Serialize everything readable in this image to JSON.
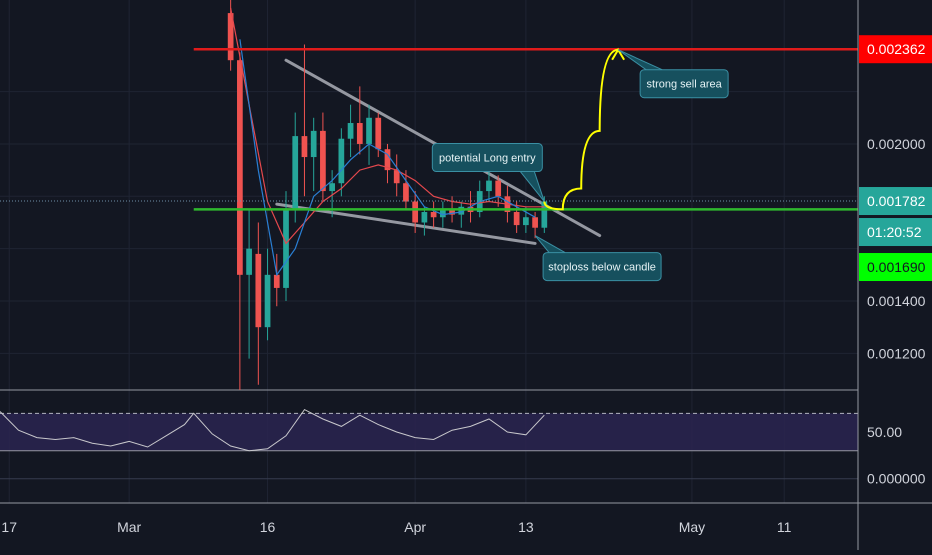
{
  "chart_data": [
    {
      "type": "candlestick",
      "title": "",
      "price_axis": {
        "ylim": [
          0.00106,
          0.00255
        ],
        "ticks": [
          "0.001200",
          "0.001400",
          "0.002000"
        ],
        "tick_values": [
          0.0012,
          0.0014,
          0.002
        ]
      },
      "time_axis": {
        "labels": [
          "17",
          "Mar",
          "16",
          "Apr",
          "13",
          "May",
          "11"
        ],
        "label_dates": [
          "2020-02-17",
          "2020-03-01",
          "2020-03-16",
          "2020-04-01",
          "2020-04-13",
          "2020-05-01",
          "2020-05-11"
        ],
        "xlim": [
          "2020-02-16",
          "2020-05-19"
        ]
      },
      "price_labels": [
        {
          "text": "0.002362",
          "value": 0.002362,
          "color": "#ff0000",
          "text_color": "#ffffff"
        },
        {
          "text": "0.001782",
          "value": 0.001782,
          "color": "#26a69a",
          "text_color": "#ffffff"
        },
        {
          "text": "01:20:52",
          "value": 0.00173,
          "color": "#26a69a",
          "text_color": "#ffffff"
        },
        {
          "text": "0.001690",
          "value": 0.00169,
          "color": "#00ff00",
          "text_color": "#131722"
        }
      ],
      "horizontal_lines": [
        {
          "name": "strong-sell-level",
          "value": 0.002362,
          "color": "#e01b1b"
        },
        {
          "name": "support-level",
          "value": 0.00175,
          "color": "#2eb82e"
        },
        {
          "name": "last-price-dotted",
          "value": 0.001782,
          "color": "#6f8fa8"
        }
      ],
      "trend_lines": [
        {
          "name": "upper-wedge-line",
          "from": [
            "2020-03-18",
            0.00232
          ],
          "to": [
            "2020-04-21",
            0.00165
          ],
          "color": "#9598a1"
        },
        {
          "name": "lower-wedge-line",
          "from": [
            "2020-03-17",
            0.00177
          ],
          "to": [
            "2020-04-14",
            0.00162
          ],
          "color": "#9598a1"
        }
      ],
      "projection": {
        "color": "#ffff00",
        "points": [
          [
            "2020-04-15",
            0.00178
          ],
          [
            "2020-04-17",
            0.00175
          ],
          [
            "2020-04-19",
            0.00183
          ],
          [
            "2020-04-21",
            0.00205
          ],
          [
            "2020-04-23",
            0.00236
          ]
        ]
      },
      "callouts": [
        {
          "name": "long-entry-callout",
          "text": "potential Long entry",
          "anchor": [
            "2020-04-15",
            0.00178
          ]
        },
        {
          "name": "sell-area-callout",
          "text": "strong sell area",
          "anchor": [
            "2020-04-23",
            0.00236
          ]
        },
        {
          "name": "stoploss-callout",
          "text": "stoploss below candle",
          "anchor": [
            "2020-04-14",
            0.00165
          ]
        }
      ],
      "series": [
        {
          "name": "candles",
          "up_color": "#26a69a",
          "down_color": "#ef5350",
          "ohlc": [
            [
              "2020-03-12",
              0.0025,
              0.00255,
              0.00228,
              0.00232
            ],
            [
              "2020-03-13",
              0.00232,
              0.00235,
              0.00106,
              0.0015
            ],
            [
              "2020-03-14",
              0.0015,
              0.00175,
              0.00118,
              0.0016
            ],
            [
              "2020-03-15",
              0.00158,
              0.0017,
              0.00108,
              0.0013
            ],
            [
              "2020-03-16",
              0.0013,
              0.0016,
              0.00125,
              0.0015
            ],
            [
              "2020-03-17",
              0.0015,
              0.00158,
              0.00138,
              0.00145
            ],
            [
              "2020-03-18",
              0.00145,
              0.00182,
              0.0014,
              0.00175
            ],
            [
              "2020-03-19",
              0.00175,
              0.00212,
              0.0017,
              0.00203
            ],
            [
              "2020-03-20",
              0.00203,
              0.00238,
              0.0018,
              0.00195
            ],
            [
              "2020-03-21",
              0.00195,
              0.0021,
              0.00182,
              0.00205
            ],
            [
              "2020-03-22",
              0.00205,
              0.00212,
              0.00178,
              0.00182
            ],
            [
              "2020-03-23",
              0.00182,
              0.0019,
              0.00172,
              0.00185
            ],
            [
              "2020-03-24",
              0.00185,
              0.00206,
              0.0018,
              0.00202
            ],
            [
              "2020-03-25",
              0.00202,
              0.00215,
              0.00195,
              0.00208
            ],
            [
              "2020-03-26",
              0.00208,
              0.00222,
              0.00196,
              0.002
            ],
            [
              "2020-03-27",
              0.002,
              0.00215,
              0.00192,
              0.0021
            ],
            [
              "2020-03-28",
              0.0021,
              0.00212,
              0.00195,
              0.00198
            ],
            [
              "2020-03-29",
              0.00198,
              0.002,
              0.00185,
              0.0019
            ],
            [
              "2020-03-30",
              0.0019,
              0.00196,
              0.0018,
              0.00185
            ],
            [
              "2020-03-31",
              0.00185,
              0.0019,
              0.00175,
              0.00178
            ],
            [
              "2020-04-01",
              0.00178,
              0.00182,
              0.00166,
              0.0017
            ],
            [
              "2020-04-02",
              0.0017,
              0.00176,
              0.00165,
              0.00174
            ],
            [
              "2020-04-03",
              0.00174,
              0.00178,
              0.00168,
              0.00172
            ],
            [
              "2020-04-04",
              0.00172,
              0.00178,
              0.00168,
              0.00175
            ],
            [
              "2020-04-05",
              0.00175,
              0.0018,
              0.0017,
              0.00173
            ],
            [
              "2020-04-06",
              0.00173,
              0.00178,
              0.00168,
              0.00176
            ],
            [
              "2020-04-07",
              0.00176,
              0.00182,
              0.0017,
              0.00174
            ],
            [
              "2020-04-08",
              0.00174,
              0.00186,
              0.00172,
              0.00182
            ],
            [
              "2020-04-09",
              0.00182,
              0.00192,
              0.00178,
              0.00186
            ],
            [
              "2020-04-10",
              0.00186,
              0.00188,
              0.00176,
              0.0018
            ],
            [
              "2020-04-11",
              0.0018,
              0.00184,
              0.0017,
              0.00174
            ],
            [
              "2020-04-12",
              0.00174,
              0.00178,
              0.00166,
              0.00169
            ],
            [
              "2020-04-13",
              0.00169,
              0.00176,
              0.00166,
              0.00172
            ],
            [
              "2020-04-14",
              0.00172,
              0.00174,
              0.00164,
              0.00168
            ],
            [
              "2020-04-15",
              0.00168,
              0.0018,
              0.00166,
              0.00178
            ]
          ]
        },
        {
          "name": "ma-red",
          "color": "#e5484d",
          "x": [
            "2020-03-12",
            "2020-03-14",
            "2020-03-16",
            "2020-03-18",
            "2020-03-20",
            "2020-03-22",
            "2020-03-24",
            "2020-03-26",
            "2020-03-28",
            "2020-03-30",
            "2020-04-01",
            "2020-04-03",
            "2020-04-05",
            "2020-04-07",
            "2020-04-09",
            "2020-04-11",
            "2020-04-13",
            "2020-04-15"
          ],
          "y": [
            0.00252,
            0.00215,
            0.00178,
            0.00162,
            0.0017,
            0.00178,
            0.00183,
            0.0019,
            0.00192,
            0.0019,
            0.00186,
            0.0018,
            0.00178,
            0.00177,
            0.00178,
            0.00177,
            0.00176,
            0.00176
          ]
        },
        {
          "name": "ma-blue",
          "color": "#2a7fd4",
          "x": [
            "2020-03-13",
            "2020-03-15",
            "2020-03-17",
            "2020-03-19",
            "2020-03-21",
            "2020-03-23",
            "2020-03-25",
            "2020-03-27",
            "2020-03-29",
            "2020-03-31",
            "2020-04-02",
            "2020-04-04",
            "2020-04-06",
            "2020-04-08",
            "2020-04-10",
            "2020-04-12",
            "2020-04-14"
          ],
          "y": [
            0.0024,
            0.0019,
            0.0015,
            0.0016,
            0.0018,
            0.00186,
            0.00194,
            0.002,
            0.00196,
            0.00186,
            0.00176,
            0.00173,
            0.00174,
            0.00178,
            0.0018,
            0.00176,
            0.00172
          ]
        }
      ]
    },
    {
      "type": "line",
      "title": "",
      "ticks": [
        "50.00",
        "0.000000"
      ],
      "tick_values": [
        50,
        0
      ],
      "ylim": [
        -26,
        95
      ],
      "reference_line": 70,
      "band": [
        30,
        70
      ],
      "series": [
        {
          "name": "rsi",
          "color": "#c8c8cc",
          "x": [
            "2020-02-16",
            "2020-02-18",
            "2020-02-20",
            "2020-02-22",
            "2020-02-24",
            "2020-02-26",
            "2020-02-28",
            "2020-03-01",
            "2020-03-03",
            "2020-03-05",
            "2020-03-07",
            "2020-03-08",
            "2020-03-10",
            "2020-03-12",
            "2020-03-14",
            "2020-03-16",
            "2020-03-18",
            "2020-03-20",
            "2020-03-22",
            "2020-03-24",
            "2020-03-26",
            "2020-03-28",
            "2020-03-30",
            "2020-04-01",
            "2020-04-03",
            "2020-04-05",
            "2020-04-07",
            "2020-04-09",
            "2020-04-11",
            "2020-04-13",
            "2020-04-15"
          ],
          "y": [
            72,
            52,
            44,
            42,
            44,
            38,
            35,
            40,
            34,
            46,
            58,
            70,
            48,
            35,
            30,
            32,
            46,
            74,
            64,
            56,
            68,
            58,
            50,
            44,
            42,
            52,
            56,
            64,
            50,
            47,
            68
          ]
        }
      ]
    }
  ]
}
